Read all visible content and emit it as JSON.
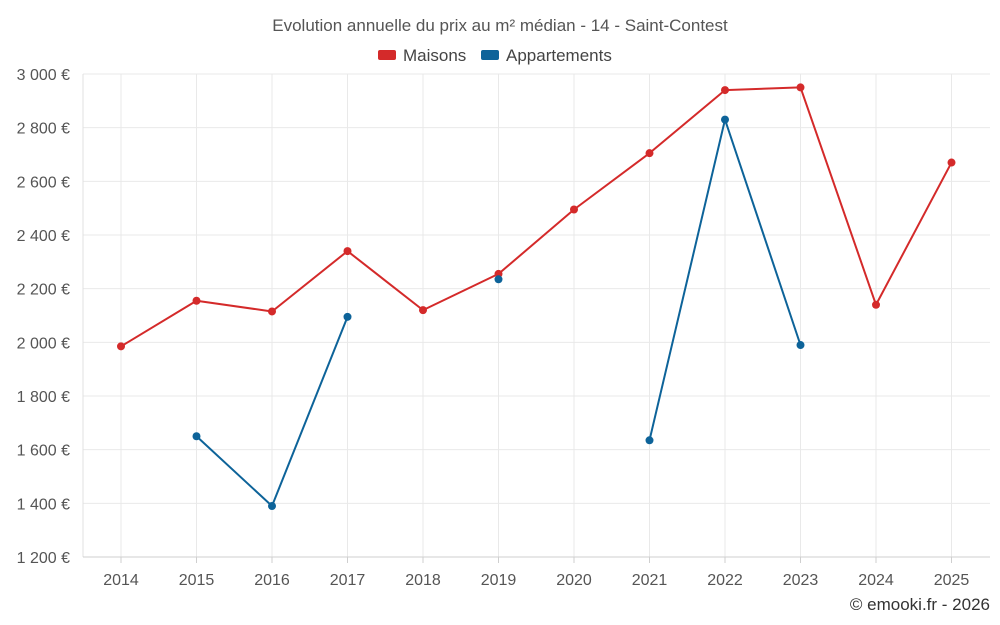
{
  "chart_data": {
    "type": "line",
    "title": "Evolution annuelle du prix au m² médian - 14 - Saint-Contest",
    "categories": [
      "2014",
      "2015",
      "2016",
      "2017",
      "2018",
      "2019",
      "2020",
      "2021",
      "2022",
      "2023",
      "2024",
      "2025"
    ],
    "ylim": [
      1200,
      3000
    ],
    "yticks": [
      1200,
      1400,
      1600,
      1800,
      2000,
      2200,
      2400,
      2600,
      2800,
      3000
    ],
    "ytick_labels": [
      "1 200 €",
      "1 400 €",
      "1 600 €",
      "1 800 €",
      "2 000 €",
      "2 200 €",
      "2 400 €",
      "2 600 €",
      "2 800 €",
      "3 000 €"
    ],
    "grid": true,
    "legend_position": "top-center",
    "series": [
      {
        "name": "Maisons",
        "color": "#d42a2a",
        "values": [
          1985,
          2155,
          2115,
          2340,
          2120,
          2255,
          2495,
          2705,
          2940,
          2950,
          2140,
          2670
        ]
      },
      {
        "name": "Appartements",
        "color": "#0d6399",
        "values": [
          null,
          1650,
          1390,
          2095,
          null,
          2235,
          null,
          1635,
          2830,
          1990,
          null,
          null
        ]
      }
    ],
    "credit": "© emooki.fr - 2026"
  }
}
